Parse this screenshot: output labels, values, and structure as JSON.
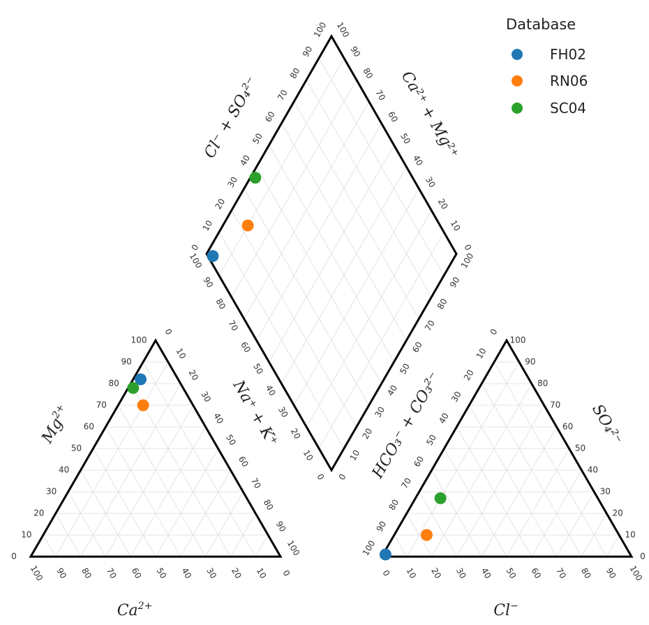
{
  "chart_data": {
    "type": "scatter",
    "subtype": "piper-trilinear",
    "legend": {
      "title": "Database",
      "placement": "top-right",
      "entries": [
        {
          "name": "FH02",
          "color": "#1f77b4"
        },
        {
          "name": "RN06",
          "color": "#ff7f0e"
        },
        {
          "name": "SC04",
          "color": "#2ca02c"
        }
      ]
    },
    "axis_labels": {
      "ca": "Ca",
      "ca_sup": "2+",
      "mg": "Mg",
      "mg_sup": "2+",
      "nak": "Na⁺ + K⁺",
      "cl": "Cl",
      "cl_sup": "−",
      "so4": "SO₄²⁻",
      "hco3": "HCO₃⁻ + CO₃²⁻",
      "clso4": "Cl⁻ + SO₄²⁻",
      "camg": "Ca²⁺ + Mg²⁺"
    },
    "ticks": {
      "left_vertical": [
        "0",
        "10",
        "20",
        "30",
        "40",
        "50",
        "60",
        "70",
        "80",
        "90",
        "100"
      ],
      "ten_step": [
        "0",
        "10",
        "20",
        "30",
        "40",
        "50",
        "60",
        "70",
        "80",
        "90",
        "100"
      ]
    },
    "grid": true,
    "samples": [
      {
        "name": "FH02",
        "cation": {
          "Mg": 82,
          "Ca": 15,
          "NaK": 3
        },
        "anion": {
          "SO4": 1,
          "Cl": 1,
          "HCO3": 98
        },
        "diamond": {
          "ClSO4": 2,
          "CaMg": 97
        }
      },
      {
        "name": "RN06",
        "cation": {
          "Mg": 70,
          "Ca": 20,
          "NaK": 10
        },
        "anion": {
          "SO4": 10,
          "Cl": 13,
          "HCO3": 77
        },
        "diamond": {
          "ClSO4": 23,
          "CaMg": 90
        }
      },
      {
        "name": "SC04",
        "cation": {
          "Mg": 78,
          "Ca": 20,
          "NaK": 2
        },
        "anion": {
          "SO4": 27,
          "Cl": 10,
          "HCO3": 63
        },
        "diamond": {
          "ClSO4": 37,
          "CaMg": 98
        }
      }
    ]
  }
}
